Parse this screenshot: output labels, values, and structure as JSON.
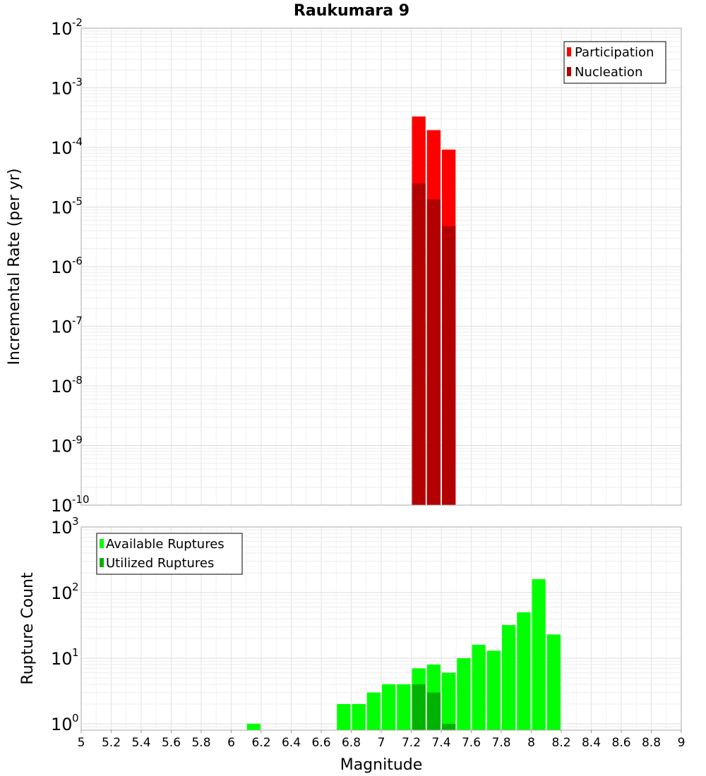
{
  "chart_data": [
    {
      "type": "bar",
      "title": "Raukumara 9",
      "xlabel": "",
      "ylabel": "Incremental Rate (per yr)",
      "xlim": [
        5,
        9
      ],
      "ylim": [
        1e-10,
        0.01
      ],
      "yscale": "log",
      "y_ticks": [
        {
          "base": "10",
          "exp": "-10"
        },
        {
          "base": "10",
          "exp": "-9"
        },
        {
          "base": "10",
          "exp": "-8"
        },
        {
          "base": "10",
          "exp": "-7"
        },
        {
          "base": "10",
          "exp": "-6"
        },
        {
          "base": "10",
          "exp": "-5"
        },
        {
          "base": "10",
          "exp": "-4"
        },
        {
          "base": "10",
          "exp": "-3"
        },
        {
          "base": "10",
          "exp": "-2"
        }
      ],
      "legend_position": "top-right",
      "grid": true,
      "series": [
        {
          "name": "Participation",
          "color": "#ff0000",
          "x": [
            7.25,
            7.35,
            7.45
          ],
          "values": [
            0.00033,
            0.000195,
            9.2e-05
          ]
        },
        {
          "name": "Nucleation",
          "color": "#b30000",
          "x": [
            7.25,
            7.35,
            7.45
          ],
          "values": [
            2.5e-05,
            1.35e-05,
            4.8e-06
          ]
        }
      ]
    },
    {
      "type": "bar",
      "title": "",
      "xlabel": "Magnitude",
      "ylabel": "Rupture Count",
      "xlim": [
        5,
        9
      ],
      "ylim": [
        0.8,
        1000
      ],
      "yscale": "log",
      "x_ticks": [
        "5",
        "5.2",
        "5.4",
        "5.6",
        "5.8",
        "6",
        "6.2",
        "6.4",
        "6.6",
        "6.8",
        "7",
        "7.2",
        "7.4",
        "7.6",
        "7.8",
        "8",
        "8.2",
        "8.4",
        "8.6",
        "8.8",
        "9"
      ],
      "y_ticks": [
        {
          "base": "10",
          "exp": "0"
        },
        {
          "base": "10",
          "exp": "1"
        },
        {
          "base": "10",
          "exp": "2"
        },
        {
          "base": "10",
          "exp": "3"
        }
      ],
      "legend_position": "top-left",
      "grid": true,
      "series": [
        {
          "name": "Available Ruptures",
          "color": "#00ff00",
          "x": [
            6.15,
            6.75,
            6.85,
            6.95,
            7.05,
            7.15,
            7.25,
            7.35,
            7.45,
            7.55,
            7.65,
            7.75,
            7.85,
            7.95,
            8.05,
            8.15
          ],
          "values": [
            1,
            2,
            2,
            3,
            4,
            4,
            7,
            8,
            6,
            10,
            16,
            13,
            32,
            50,
            160,
            23
          ]
        },
        {
          "name": "Utilized Ruptures",
          "color": "#00b300",
          "x": [
            7.25,
            7.35,
            7.45
          ],
          "values": [
            4,
            3,
            1
          ]
        }
      ]
    }
  ]
}
